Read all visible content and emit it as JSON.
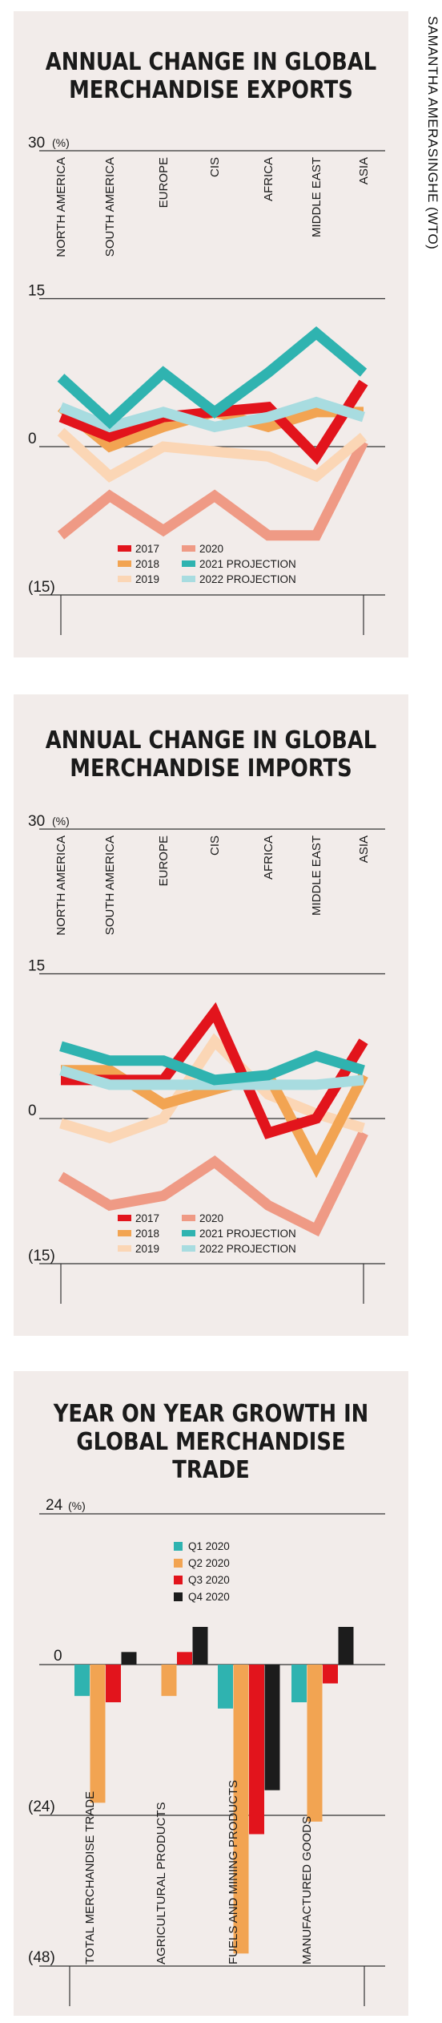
{
  "credit": "SAMANTHA AMERASINGHE (WTO)",
  "colors": {
    "2017": "#e2141c",
    "2018": "#f2a452",
    "2019": "#fbd6b5",
    "2020": "#ef9a85",
    "2021 PROJECTION": "#2fb3b0",
    "2022 PROJECTION": "#a8dce0",
    "Q1 2020": "#2fb3b0",
    "Q2 2020": "#f2a452",
    "Q3 2020": "#e2141c",
    "Q4 2020": "#1c1c1c"
  },
  "chart_data": [
    {
      "type": "line",
      "title": "ANNUAL CHANGE IN GLOBAL MERCHANDISE EXPORTS",
      "unit": "(%)",
      "yticks": [
        "30",
        "15",
        "0",
        "(15)"
      ],
      "ylim": [
        -15,
        30
      ],
      "categories": [
        "NORTH AMERICA",
        "SOUTH AMERICA",
        "EUROPE",
        "CIS",
        "AFRICA",
        "MIDDLE EAST",
        "ASIA"
      ],
      "series": [
        {
          "name": "2017",
          "values": [
            3.0,
            1.0,
            3.0,
            3.5,
            4.0,
            -1.0,
            6.5
          ]
        },
        {
          "name": "2018",
          "values": [
            4.0,
            0.0,
            2.0,
            3.5,
            2.0,
            3.5,
            3.5
          ]
        },
        {
          "name": "2019",
          "values": [
            1.5,
            -3.0,
            0.0,
            -0.5,
            -1.0,
            -3.0,
            1.0
          ]
        },
        {
          "name": "2020",
          "values": [
            -9.0,
            -5.0,
            -8.5,
            -5.0,
            -9.0,
            -9.0,
            0.5
          ]
        },
        {
          "name": "2021 PROJECTION",
          "values": [
            7.0,
            2.5,
            7.5,
            3.5,
            7.5,
            11.5,
            7.5
          ]
        },
        {
          "name": "2022 PROJECTION",
          "values": [
            4.0,
            2.0,
            3.5,
            2.0,
            3.0,
            4.5,
            3.0
          ]
        }
      ],
      "legend": [
        "2017",
        "2020",
        "2018",
        "2021 PROJECTION",
        "2019",
        "2022 PROJECTION"
      ]
    },
    {
      "type": "line",
      "title": "ANNUAL CHANGE IN GLOBAL MERCHANDISE IMPORTS",
      "unit": "(%)",
      "yticks": [
        "30",
        "15",
        "0",
        "(15)"
      ],
      "ylim": [
        -15,
        30
      ],
      "categories": [
        "NORTH AMERICA",
        "SOUTH AMERICA",
        "EUROPE",
        "CIS",
        "AFRICA",
        "MIDDLE EAST",
        "ASIA"
      ],
      "series": [
        {
          "name": "2017",
          "values": [
            4.0,
            4.0,
            4.0,
            11.0,
            -1.5,
            0.0,
            8.0
          ]
        },
        {
          "name": "2018",
          "values": [
            5.0,
            5.0,
            1.5,
            3.0,
            4.5,
            -5.0,
            4.5
          ]
        },
        {
          "name": "2019",
          "values": [
            -0.5,
            -2.0,
            0.0,
            8.0,
            2.5,
            0.5,
            -1.0
          ]
        },
        {
          "name": "2020",
          "values": [
            -6.0,
            -9.0,
            -8.0,
            -4.5,
            -9.0,
            -11.5,
            -1.5
          ]
        },
        {
          "name": "2021 PROJECTION",
          "values": [
            7.5,
            6.0,
            6.0,
            4.0,
            4.5,
            6.5,
            5.0
          ]
        },
        {
          "name": "2022 PROJECTION",
          "values": [
            5.0,
            3.5,
            3.5,
            3.5,
            3.5,
            3.5,
            4.0
          ]
        }
      ],
      "legend": [
        "2017",
        "2020",
        "2018",
        "2021 PROJECTION",
        "2019",
        "2022 PROJECTION"
      ]
    },
    {
      "type": "bar",
      "title": "YEAR ON YEAR GROWTH IN GLOBAL MERCHANDISE TRADE",
      "unit": "(%)",
      "yticks": [
        "24",
        "0",
        "(24)",
        "(48)"
      ],
      "ylim": [
        -48,
        24
      ],
      "categories": [
        "TOTAL MERCHANDISE TRADE",
        "AGRICULTURAL PRODUCTS",
        "FUELS AND MINING PRODUCTS",
        "MANUFACTURED GOODS"
      ],
      "series": [
        {
          "name": "Q1 2020",
          "values": [
            -5,
            0,
            -7,
            -6
          ]
        },
        {
          "name": "Q2 2020",
          "values": [
            -22,
            -5,
            -46,
            -25
          ]
        },
        {
          "name": "Q3 2020",
          "values": [
            -6,
            2,
            -27,
            -3
          ]
        },
        {
          "name": "Q4 2020",
          "values": [
            2,
            6,
            -20,
            6
          ]
        }
      ],
      "legend": [
        "Q1 2020",
        "Q2 2020",
        "Q3 2020",
        "Q4 2020"
      ]
    }
  ]
}
